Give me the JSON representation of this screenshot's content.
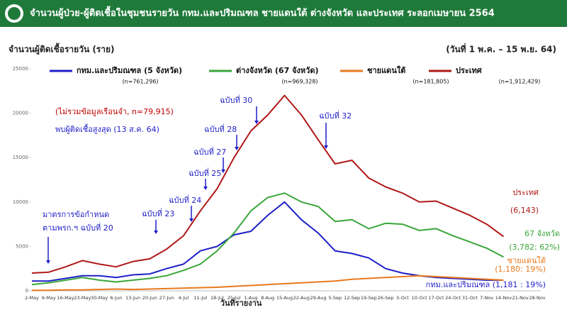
{
  "chart_data": {
    "type": "line",
    "title": "จำนวนผู้ป่วย-ผู้ติดเชื้อในชุมชนรายวัน กทม.และปริมณฑล ชายแดนใต้ ต่างจังหวัด และประเทศ ระลอกเมษายน 2564",
    "y_label": "จำนวนผู้ติดเชื้อรายวัน (ราย)",
    "subtitle": "(วันที่ 1 พ.ค. – 15 พ.ย. 64)",
    "x_label": "วันที่รายงาน",
    "categories": [
      "2-May",
      "9-May",
      "16-May",
      "23-May",
      "30-May",
      "6-Jun",
      "13-Jun",
      "20-Jun",
      "27-Jun",
      "4-Jul",
      "11-Jul",
      "18-Jul",
      "25-Jul",
      "1-Aug",
      "8-Aug",
      "15-Aug",
      "22-Aug",
      "29-Aug",
      "5-Sep",
      "12-Sep",
      "19-Sep",
      "26-Sep",
      "3-Oct",
      "10-Oct",
      "17-Oct",
      "24-Oct",
      "31-Oct",
      "7-Nov",
      "14-Nov",
      "21-Nov",
      "28-Nov"
    ],
    "ylim": [
      0,
      25000
    ],
    "yticks": [
      0,
      5000,
      10000,
      15000,
      20000,
      25000
    ],
    "series": [
      {
        "name": "กทม.และปริมณฑล (5 จังหวัด)",
        "total": "(n=761,296)",
        "color": "#1f1fc8",
        "end_label": "กทม.และปริมณฑล (1,181 : 19%)",
        "values": [
          1100,
          1100,
          1400,
          1700,
          1700,
          1500,
          1800,
          1900,
          2500,
          3000,
          4500,
          5000,
          6300,
          6700,
          8500,
          10000,
          8000,
          6500,
          4500,
          4200,
          3700,
          2500,
          2000,
          1700,
          1500,
          1400,
          1300,
          1200,
          1200,
          null,
          null
        ]
      },
      {
        "name": "ต่างจังหวัด (67 จังหวัด)",
        "total": "(n=969,328)",
        "color": "#3aa63a",
        "end_label": "67 จังหวัด",
        "end_note": "(3,782: 62%)",
        "values": [
          700,
          900,
          1200,
          1500,
          1200,
          1000,
          1200,
          1400,
          1700,
          2300,
          3000,
          4500,
          6500,
          9000,
          10500,
          11000,
          10000,
          9500,
          7800,
          8000,
          7000,
          7600,
          7500,
          6800,
          7000,
          6200,
          5500,
          4800,
          3800,
          null,
          null
        ]
      },
      {
        "name": "ชายแดนใต้",
        "total": "(n=181,805)",
        "color": "#e87a1e",
        "end_label": "ชายแดนใต้",
        "end_note": "(1,180: 19%)",
        "values": [
          50,
          60,
          100,
          100,
          150,
          200,
          150,
          200,
          250,
          300,
          350,
          400,
          500,
          600,
          700,
          800,
          900,
          1000,
          1100,
          1300,
          1400,
          1500,
          1600,
          1700,
          1600,
          1500,
          1400,
          1300,
          1200,
          null,
          null
        ]
      },
      {
        "name": "ประเทศ",
        "total": "(n=1,912,429)",
        "color": "#b01818",
        "end_label": "ประเทศ",
        "end_note": "(6,143)",
        "values": [
          2000,
          2100,
          2700,
          3400,
          3000,
          2700,
          3300,
          3600,
          4700,
          6200,
          9000,
          11500,
          15000,
          18000,
          19800,
          22000,
          19800,
          17000,
          14300,
          14700,
          12700,
          11700,
          11000,
          10000,
          10100,
          9300,
          8500,
          7500,
          6100,
          null,
          null
        ]
      }
    ],
    "annotations": [
      {
        "text": "(ไม่รวมข้อมูลเรือนจำ, n=79,915)",
        "color": "#c00000"
      },
      {
        "text": "พบผู้ติดเชื้อสูงสุด (13 ส.ค. 64)",
        "color": "#1f1fc8"
      },
      {
        "text": "มาตรการข้อกำหนด",
        "color": "#1f1fc8"
      },
      {
        "text": "ตามพรก.ฯ ฉบับที่ 20",
        "color": "#1f1fc8"
      },
      {
        "text": "ฉบับที่ 23",
        "color": "#1f1fc8"
      },
      {
        "text": "ฉบับที่ 24",
        "color": "#1f1fc8"
      },
      {
        "text": "ฉบับที่ 25",
        "color": "#1f1fc8"
      },
      {
        "text": "ฉบับที่ 27",
        "color": "#1f1fc8"
      },
      {
        "text": "ฉบับที่ 28",
        "color": "#1f1fc8"
      },
      {
        "text": "ฉบับที่ 30",
        "color": "#1f1fc8"
      },
      {
        "text": "ฉบับที่ 32",
        "color": "#1f1fc8"
      }
    ]
  }
}
